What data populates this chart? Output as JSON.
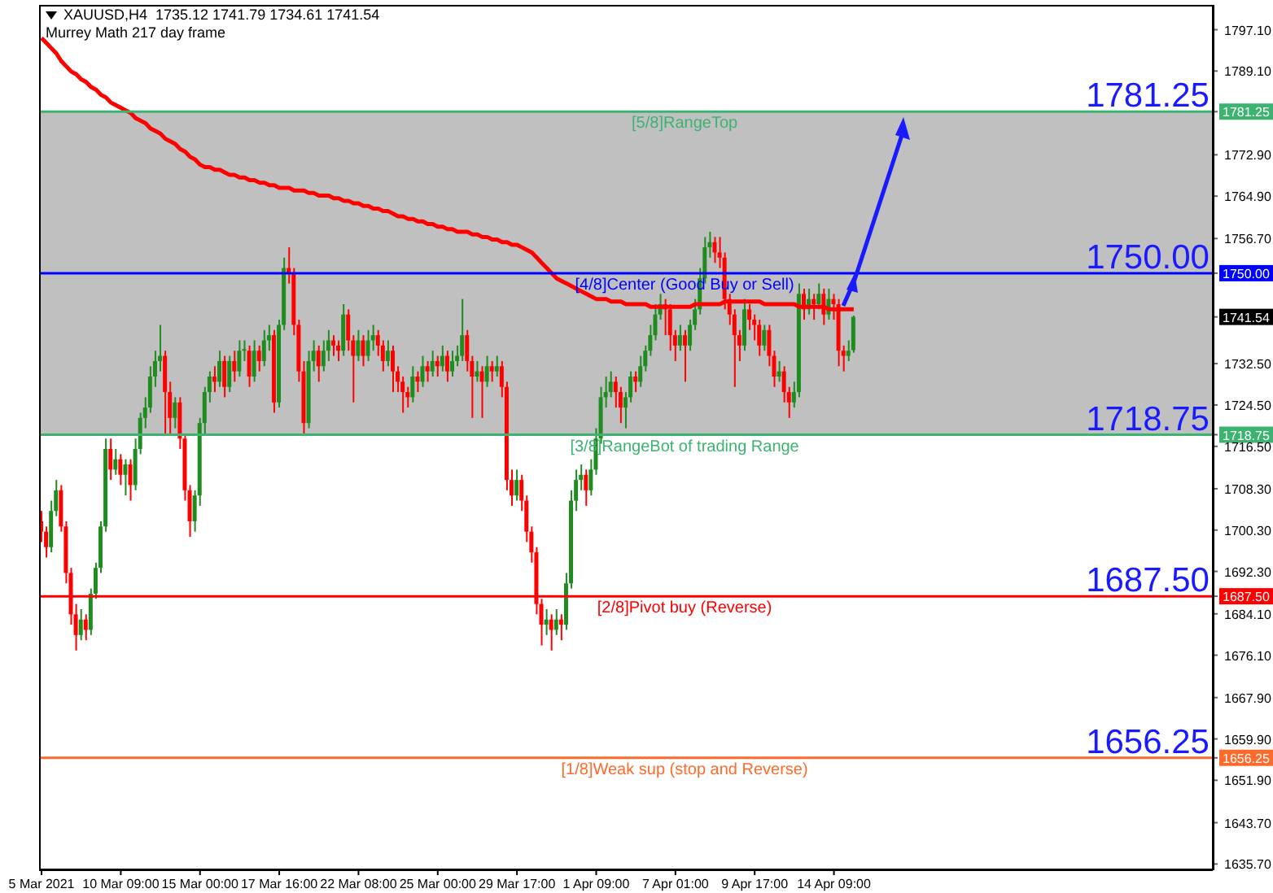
{
  "chart_data": {
    "type": "candlestick",
    "title": "XAUUSD,H4  1735.12 1741.79 1734.61 1741.54",
    "subtitle": "Murrey Math 217 day frame",
    "categories": [
      "5 Mar 2021",
      null,
      null,
      null,
      null,
      null,
      null,
      null,
      null,
      null,
      null,
      null,
      null,
      null,
      null,
      null,
      "10 Mar 09:00",
      null,
      null,
      null,
      null,
      null,
      null,
      null,
      null,
      null,
      null,
      null,
      null,
      null,
      null,
      null,
      "15 Mar 00:00",
      null,
      null,
      null,
      null,
      null,
      null,
      null,
      null,
      null,
      null,
      null,
      null,
      null,
      null,
      null,
      "17 Mar 16:00",
      null,
      null,
      null,
      null,
      null,
      null,
      null,
      null,
      null,
      null,
      null,
      null,
      null,
      null,
      null,
      "22 Mar 08:00",
      null,
      null,
      null,
      null,
      null,
      null,
      null,
      null,
      null,
      null,
      null,
      null,
      null,
      null,
      null,
      "25 Mar 00:00",
      null,
      null,
      null,
      null,
      null,
      null,
      null,
      null,
      null,
      null,
      null,
      null,
      null,
      null,
      null,
      "29 Mar 17:00",
      null,
      null,
      null,
      null,
      null,
      null,
      null,
      null,
      null,
      null,
      null,
      null,
      null,
      null,
      null,
      "1 Apr 09:00",
      null,
      null,
      null,
      null,
      null,
      null,
      null,
      null,
      null,
      null,
      null,
      null,
      null,
      null,
      null,
      "7 Apr 01:00",
      null,
      null,
      null,
      null,
      null,
      null,
      null,
      null,
      null,
      null,
      null,
      null,
      null,
      null,
      null,
      "9 Apr 17:00",
      null,
      null,
      null,
      null,
      null,
      null,
      null,
      null,
      null,
      null,
      null,
      null,
      null,
      null,
      null,
      "14 Apr 09:00",
      null,
      null,
      null,
      null,
      null,
      null,
      null,
      null,
      null,
      null,
      null,
      null,
      null,
      null,
      null,
      null,
      null,
      null,
      null,
      null,
      null,
      null,
      null,
      null,
      null,
      null,
      null,
      null,
      null,
      null,
      null,
      null,
      null,
      null,
      null,
      null,
      null,
      null,
      null,
      null,
      null,
      null,
      null,
      null,
      null,
      null,
      null,
      null,
      null,
      null,
      null,
      null,
      null,
      null,
      null,
      null,
      null,
      null,
      null,
      null,
      null,
      null,
      null,
      null,
      null,
      null,
      null,
      null,
      null,
      null,
      null,
      null,
      null,
      null,
      null,
      null
    ],
    "ohlc": [
      [
        1702,
        1704,
        1698,
        1700
      ],
      [
        1700,
        1701,
        1695,
        1697
      ],
      [
        1697,
        1706,
        1696,
        1704
      ],
      [
        1704,
        1710,
        1703,
        1708
      ],
      [
        1708,
        1709,
        1700,
        1701
      ],
      [
        1701,
        1702,
        1690,
        1692
      ],
      [
        1692,
        1693,
        1682,
        1684
      ],
      [
        1684,
        1686,
        1677,
        1680
      ],
      [
        1680,
        1685,
        1679,
        1683
      ],
      [
        1683,
        1684,
        1679,
        1681
      ],
      [
        1681,
        1689,
        1680,
        1688
      ],
      [
        1688,
        1694,
        1687,
        1693
      ],
      [
        1693,
        1702,
        1692,
        1701
      ],
      [
        1701,
        1718,
        1700,
        1716
      ],
      [
        1716,
        1718,
        1710,
        1712
      ],
      [
        1712,
        1716,
        1711,
        1714
      ],
      [
        1714,
        1715,
        1709,
        1711
      ],
      [
        1711,
        1714,
        1707,
        1713
      ],
      [
        1713,
        1714,
        1706,
        1709
      ],
      [
        1709,
        1718,
        1708,
        1716
      ],
      [
        1716,
        1723,
        1715,
        1722
      ],
      [
        1722,
        1726,
        1720,
        1724
      ],
      [
        1724,
        1732,
        1723,
        1730
      ],
      [
        1730,
        1735,
        1728,
        1733
      ],
      [
        1733,
        1740,
        1731,
        1734
      ],
      [
        1734,
        1735,
        1719,
        1727
      ],
      [
        1727,
        1729,
        1719,
        1722
      ],
      [
        1722,
        1726,
        1720,
        1725
      ],
      [
        1725,
        1726,
        1716,
        1718
      ],
      [
        1718,
        1719,
        1706,
        1708
      ],
      [
        1708,
        1709,
        1699,
        1702
      ],
      [
        1702,
        1708,
        1700,
        1707
      ],
      [
        1707,
        1722,
        1705,
        1721
      ],
      [
        1721,
        1728,
        1719,
        1727
      ],
      [
        1727,
        1731,
        1725,
        1730
      ],
      [
        1730,
        1732,
        1727,
        1729
      ],
      [
        1729,
        1735,
        1728,
        1733
      ],
      [
        1733,
        1734,
        1726,
        1728
      ],
      [
        1728,
        1734,
        1727,
        1733
      ],
      [
        1733,
        1735,
        1729,
        1731
      ],
      [
        1731,
        1737,
        1730,
        1735
      ],
      [
        1735,
        1737,
        1733,
        1735
      ],
      [
        1735,
        1736,
        1728,
        1730
      ],
      [
        1730,
        1737,
        1729,
        1735
      ],
      [
        1735,
        1736,
        1731,
        1733
      ],
      [
        1733,
        1739,
        1732,
        1737
      ],
      [
        1737,
        1740,
        1735,
        1738
      ],
      [
        1738,
        1739,
        1723,
        1725
      ],
      [
        1725,
        1741,
        1724,
        1740
      ],
      [
        1740,
        1753,
        1739,
        1751
      ],
      [
        1751,
        1755,
        1748,
        1750
      ],
      [
        1750,
        1751,
        1738,
        1740
      ],
      [
        1740,
        1741,
        1729,
        1731
      ],
      [
        1731,
        1733,
        1719,
        1721
      ],
      [
        1721,
        1735,
        1720,
        1733
      ],
      [
        1733,
        1737,
        1731,
        1735
      ],
      [
        1735,
        1736,
        1729,
        1732
      ],
      [
        1732,
        1737,
        1731,
        1735
      ],
      [
        1735,
        1739,
        1733,
        1737
      ],
      [
        1737,
        1738,
        1734,
        1736
      ],
      [
        1736,
        1737,
        1733,
        1735
      ],
      [
        1735,
        1744,
        1734,
        1742
      ],
      [
        1742,
        1743,
        1735,
        1737
      ],
      [
        1737,
        1738,
        1725,
        1734
      ],
      [
        1734,
        1739,
        1733,
        1737
      ],
      [
        1737,
        1738,
        1732,
        1734
      ],
      [
        1734,
        1739,
        1733,
        1737
      ],
      [
        1737,
        1740,
        1735,
        1738
      ],
      [
        1738,
        1739,
        1734,
        1736
      ],
      [
        1736,
        1737,
        1731,
        1733
      ],
      [
        1733,
        1737,
        1732,
        1735
      ],
      [
        1735,
        1736,
        1727,
        1731
      ],
      [
        1731,
        1732,
        1727,
        1729
      ],
      [
        1729,
        1730,
        1723,
        1727
      ],
      [
        1727,
        1728,
        1724,
        1726
      ],
      [
        1726,
        1732,
        1725,
        1730
      ],
      [
        1730,
        1731,
        1727,
        1729
      ],
      [
        1729,
        1734,
        1728,
        1732
      ],
      [
        1732,
        1733,
        1729,
        1731
      ],
      [
        1731,
        1735,
        1730,
        1733
      ],
      [
        1733,
        1734,
        1730,
        1732
      ],
      [
        1732,
        1736,
        1731,
        1734
      ],
      [
        1734,
        1735,
        1729,
        1731
      ],
      [
        1731,
        1735,
        1730,
        1733
      ],
      [
        1733,
        1736,
        1732,
        1734
      ],
      [
        1734,
        1745,
        1733,
        1738
      ],
      [
        1738,
        1739,
        1731,
        1733
      ],
      [
        1733,
        1734,
        1722,
        1730
      ],
      [
        1730,
        1733,
        1729,
        1731
      ],
      [
        1731,
        1732,
        1722,
        1729
      ],
      [
        1729,
        1734,
        1728,
        1732
      ],
      [
        1732,
        1733,
        1729,
        1731
      ],
      [
        1731,
        1734,
        1730,
        1732
      ],
      [
        1732,
        1733,
        1726,
        1728
      ],
      [
        1728,
        1729,
        1708,
        1710
      ],
      [
        1710,
        1712,
        1705,
        1707
      ],
      [
        1707,
        1712,
        1706,
        1710
      ],
      [
        1710,
        1711,
        1704,
        1706
      ],
      [
        1706,
        1707,
        1698,
        1700
      ],
      [
        1700,
        1701,
        1694,
        1696
      ],
      [
        1696,
        1697,
        1684,
        1686
      ],
      [
        1686,
        1687,
        1678,
        1682
      ],
      [
        1682,
        1685,
        1680,
        1683
      ],
      [
        1683,
        1684,
        1677,
        1681
      ],
      [
        1681,
        1685,
        1680,
        1683
      ],
      [
        1683,
        1684,
        1679,
        1682
      ],
      [
        1682,
        1692,
        1681,
        1690
      ],
      [
        1690,
        1708,
        1689,
        1706
      ],
      [
        1706,
        1712,
        1704,
        1710
      ],
      [
        1710,
        1713,
        1708,
        1711
      ],
      [
        1711,
        1712,
        1705,
        1708
      ],
      [
        1708,
        1714,
        1707,
        1712
      ],
      [
        1712,
        1720,
        1711,
        1718
      ],
      [
        1718,
        1728,
        1717,
        1726
      ],
      [
        1726,
        1730,
        1724,
        1727
      ],
      [
        1727,
        1731,
        1726,
        1729
      ],
      [
        1729,
        1730,
        1724,
        1727
      ],
      [
        1727,
        1728,
        1721,
        1724
      ],
      [
        1724,
        1727,
        1720,
        1726
      ],
      [
        1726,
        1731,
        1725,
        1730
      ],
      [
        1730,
        1731,
        1727,
        1729
      ],
      [
        1729,
        1734,
        1728,
        1732
      ],
      [
        1732,
        1736,
        1731,
        1735
      ],
      [
        1735,
        1740,
        1734,
        1738
      ],
      [
        1738,
        1744,
        1737,
        1742
      ],
      [
        1742,
        1746,
        1741,
        1744
      ],
      [
        1744,
        1745,
        1738,
        1743
      ],
      [
        1743,
        1744,
        1735,
        1738
      ],
      [
        1738,
        1739,
        1733,
        1736
      ],
      [
        1736,
        1740,
        1735,
        1738
      ],
      [
        1738,
        1739,
        1729,
        1736
      ],
      [
        1736,
        1741,
        1735,
        1740
      ],
      [
        1740,
        1745,
        1739,
        1743
      ],
      [
        1743,
        1751,
        1742,
        1749
      ],
      [
        1749,
        1757,
        1748,
        1755
      ],
      [
        1755,
        1758,
        1753,
        1756
      ],
      [
        1756,
        1757,
        1752,
        1754
      ],
      [
        1754,
        1757,
        1751,
        1753
      ],
      [
        1753,
        1754,
        1743,
        1745
      ],
      [
        1745,
        1746,
        1740,
        1742
      ],
      [
        1742,
        1743,
        1728,
        1738
      ],
      [
        1738,
        1739,
        1733,
        1736
      ],
      [
        1736,
        1745,
        1735,
        1743
      ],
      [
        1743,
        1744,
        1739,
        1741
      ],
      [
        1741,
        1742,
        1737,
        1740
      ],
      [
        1740,
        1741,
        1734,
        1736
      ],
      [
        1736,
        1740,
        1735,
        1739
      ],
      [
        1739,
        1740,
        1732,
        1734
      ],
      [
        1734,
        1735,
        1728,
        1730
      ],
      [
        1730,
        1733,
        1729,
        1731
      ],
      [
        1731,
        1732,
        1725,
        1727
      ],
      [
        1727,
        1728,
        1722,
        1725
      ],
      [
        1725,
        1729,
        1724,
        1727
      ],
      [
        1727,
        1748,
        1726,
        1746
      ],
      [
        1746,
        1747,
        1741,
        1743
      ],
      [
        1743,
        1747,
        1742,
        1745
      ],
      [
        1745,
        1746,
        1741,
        1744
      ],
      [
        1744,
        1748,
        1743,
        1746
      ],
      [
        1746,
        1747,
        1740,
        1742
      ],
      [
        1742,
        1747,
        1741,
        1745
      ],
      [
        1745,
        1746,
        1741,
        1744
      ],
      [
        1744,
        1745,
        1732,
        1735
      ],
      [
        1735,
        1736,
        1731,
        1734
      ],
      [
        1734,
        1737,
        1733,
        1735
      ],
      [
        1735.12,
        1741.79,
        1734.61,
        1741.54
      ],
      null,
      null,
      null,
      null,
      null,
      null,
      null,
      null,
      null,
      null,
      null,
      null,
      null,
      null,
      null,
      null,
      null,
      null,
      null,
      null,
      null,
      null,
      null,
      null,
      null,
      null,
      null,
      null,
      null,
      null,
      null,
      null,
      null,
      null,
      null,
      null,
      null,
      null,
      null,
      null,
      null,
      null,
      null,
      null,
      null,
      null,
      null,
      null,
      null,
      null,
      null,
      null,
      null,
      null,
      null,
      null,
      null,
      null,
      null,
      null,
      null,
      null,
      null,
      null,
      null,
      null,
      null,
      null,
      null,
      null,
      null,
      null
    ],
    "series": [
      {
        "type": "line",
        "color": "#ff0000",
        "values": [
          1795.5,
          1794.5,
          1793.5,
          1792.5,
          1791,
          1790,
          1789,
          1788.5,
          1787.5,
          1787,
          1786,
          1785.5,
          1784.5,
          1784,
          1783,
          1782.5,
          1782,
          1781.5,
          1781,
          1780,
          1779.5,
          1779,
          1778,
          1777.5,
          1777,
          1776,
          1775.5,
          1775,
          1774,
          1773.5,
          1772.5,
          1772,
          1771,
          1770.5,
          1770.5,
          1770,
          1770,
          1769.5,
          1769,
          1769,
          1768.5,
          1768.5,
          1768,
          1768,
          1767.5,
          1767.5,
          1767,
          1767,
          1766.5,
          1766.5,
          1766.5,
          1766,
          1766,
          1766,
          1765.5,
          1765.5,
          1765,
          1765,
          1765,
          1764.5,
          1764.5,
          1764,
          1764,
          1763.5,
          1763.5,
          1763,
          1763,
          1762.5,
          1762.5,
          1762,
          1762,
          1761.5,
          1761,
          1761,
          1760.5,
          1760.5,
          1760,
          1760,
          1759.5,
          1759.5,
          1759,
          1759,
          1758.5,
          1758.5,
          1758,
          1758,
          1758,
          1757.5,
          1757.5,
          1757,
          1757,
          1756.5,
          1756.5,
          1756,
          1756,
          1755.5,
          1755.5,
          1755,
          1754.5,
          1754,
          1753,
          1752,
          1751,
          1750,
          1749,
          1748.5,
          1748,
          1747.5,
          1747,
          1746.5,
          1746,
          1745.5,
          1745,
          1745,
          1745,
          1744.5,
          1744.5,
          1744.5,
          1744,
          1744,
          1744,
          1744,
          1744,
          1743.5,
          1743.5,
          1743.5,
          1743.5,
          1743.5,
          1743.5,
          1743.5,
          1743.5,
          1743.5,
          1744,
          1744,
          1744,
          1744,
          1744,
          1744,
          1744.5,
          1744.5,
          1744.5,
          1744.5,
          1744.5,
          1744.5,
          1744.5,
          1744.5,
          1744,
          1744,
          1744,
          1744,
          1744,
          1744,
          1744,
          1743.5,
          1743.5,
          1743.5,
          1743.5,
          1743.5,
          1743.5,
          1743,
          1743,
          1743,
          1743,
          1743,
          1743,
          null,
          null,
          null,
          null,
          null,
          null,
          null,
          null,
          null,
          null,
          null,
          null,
          null,
          null,
          null,
          null,
          null,
          null,
          null,
          null,
          null,
          null,
          null,
          null,
          null,
          null,
          null,
          null,
          null,
          null,
          null,
          null,
          null,
          null,
          null,
          null,
          null,
          null,
          null,
          null,
          null,
          null,
          null,
          null,
          null,
          null,
          null,
          null,
          null,
          null,
          null,
          null,
          null,
          null,
          null,
          null,
          null,
          null,
          null,
          null,
          null,
          null,
          null,
          null,
          null,
          null,
          null,
          null,
          null,
          null,
          null,
          null
        ]
      }
    ],
    "ylim": [
      1634.5,
      1801.9
    ],
    "yticks": [
      {
        "value": 1797.1,
        "label": "1797.10"
      },
      {
        "value": 1789.1,
        "label": "1789.10"
      },
      {
        "value": 1781.25,
        "label": "1781.25"
      },
      {
        "value": 1772.9,
        "label": "1772.90"
      },
      {
        "value": 1764.9,
        "label": "1764.90"
      },
      {
        "value": 1756.7,
        "label": "1756.70"
      },
      {
        "value": 1750,
        "label": "1750.00"
      },
      {
        "value": 1741.54,
        "label": "1741.54"
      },
      {
        "value": 1732.5,
        "label": "1732.50"
      },
      {
        "value": 1724.5,
        "label": "1724.50"
      },
      {
        "value": 1718.75,
        "label": "1718.75"
      },
      {
        "value": 1716.5,
        "label": "1716.50"
      },
      {
        "value": 1708.3,
        "label": "1708.30"
      },
      {
        "value": 1700.3,
        "label": "1700.30"
      },
      {
        "value": 1692.3,
        "label": "1692.30"
      },
      {
        "value": 1687.5,
        "label": "1687.50"
      },
      {
        "value": 1684.1,
        "label": "1684.10"
      },
      {
        "value": 1676.1,
        "label": "1676.10"
      },
      {
        "value": 1667.9,
        "label": "1667.90"
      },
      {
        "value": 1659.9,
        "label": "1659.90"
      },
      {
        "value": 1656.25,
        "label": "1656.25"
      },
      {
        "value": 1651.9,
        "label": "1651.90"
      },
      {
        "value": 1643.7,
        "label": "1643.70"
      },
      {
        "value": 1635.7,
        "label": "1635.70"
      }
    ],
    "bands": [
      {
        "axis": "y",
        "from": 1718.75,
        "to": 1781.25,
        "label": null,
        "color": "#c0c0c0"
      }
    ],
    "ref_lines": [
      {
        "axis": "y",
        "value": 1781.25,
        "label": "[5/8]RangeTop",
        "color": "#3cb371"
      },
      {
        "axis": "y",
        "value": 1750,
        "label": "[4/8]Center (Good Buy or Sell)",
        "color": "#0000ff"
      },
      {
        "axis": "y",
        "value": 1718.75,
        "label": "[3/8]RangeBot of trading Range",
        "color": "#3cb371"
      },
      {
        "axis": "y",
        "value": 1687.5,
        "label": "[2/8]Pivot buy (Reverse)",
        "color": "#ff0000"
      },
      {
        "axis": "y",
        "value": 1656.25,
        "label": "[1/8]Weak sup (stop and Reverse)",
        "color": "#ff6a2a"
      }
    ],
    "annotations": [
      {
        "text": "1781.25",
        "y": 1781.25
      },
      {
        "text": "1750.00",
        "y": 1750
      },
      {
        "text": "1718.75",
        "y": 1718.75
      },
      {
        "text": "1687.50",
        "y": 1687.5
      },
      {
        "text": "1656.25",
        "y": 1656.25
      }
    ]
  }
}
